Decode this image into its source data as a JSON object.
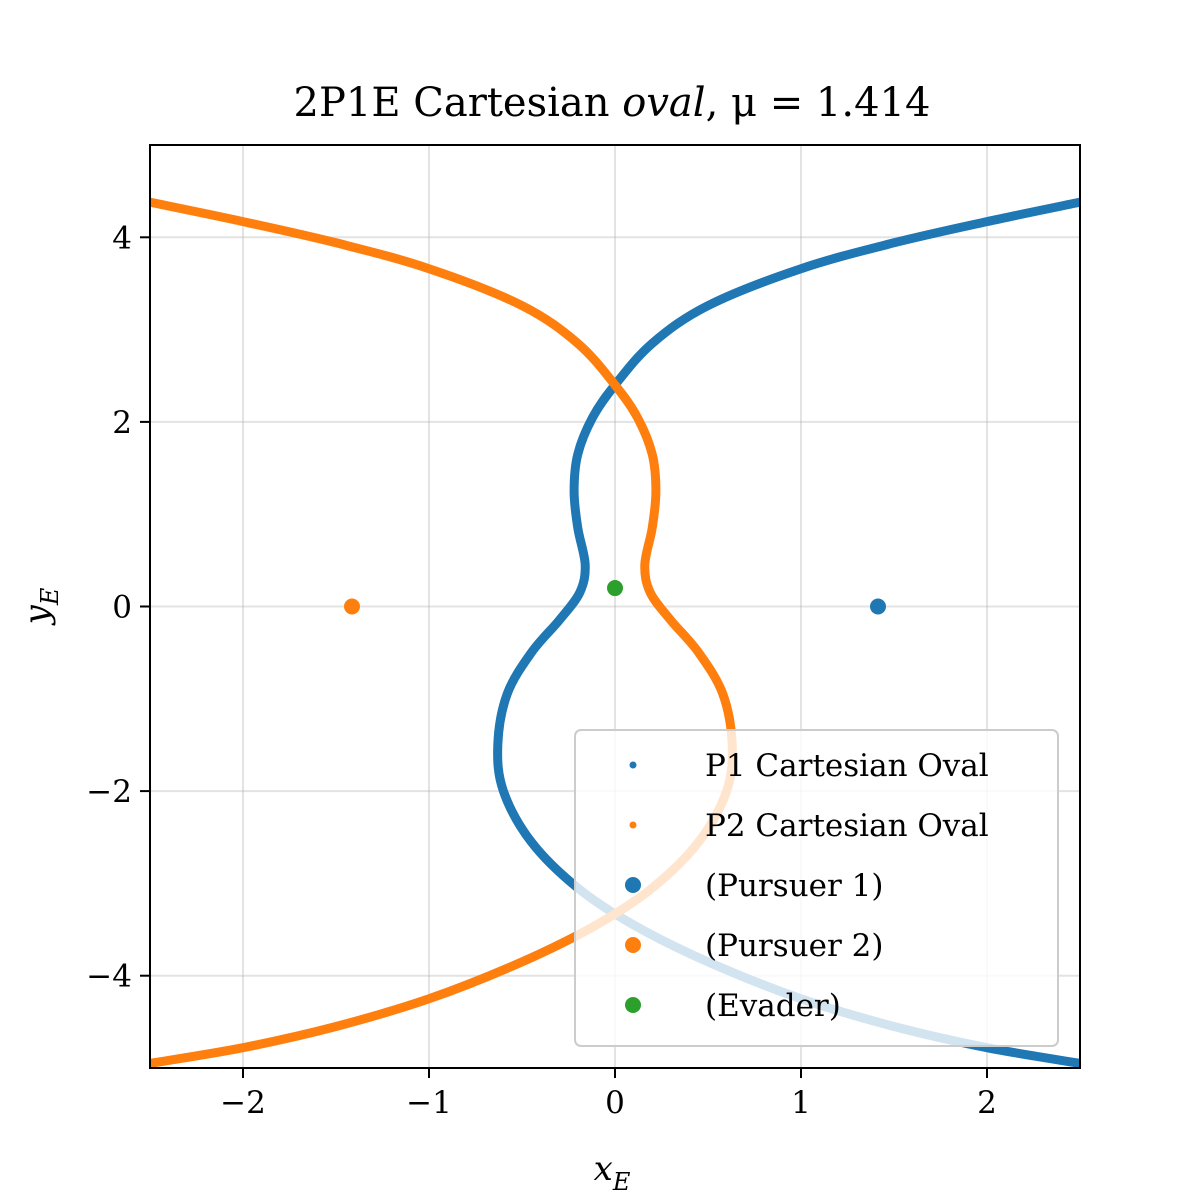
{
  "chart_data": {
    "type": "scatter",
    "title": "2P1E Cartesian oval, μ = 1.414",
    "title_parts": {
      "plain": "2P1E Cartesian ",
      "italic": "oval",
      "rest": ", μ = 1.414"
    },
    "mu": 1.414,
    "xlabel": "x_E",
    "ylabel": "y_E",
    "xlabel_parts": {
      "base": "x",
      "sub": "E"
    },
    "ylabel_parts": {
      "base": "y",
      "sub": "E"
    },
    "xlim": [
      -2.5,
      2.5
    ],
    "ylim": [
      -5,
      5
    ],
    "x_ticks": [
      -2,
      -1,
      0,
      1,
      2
    ],
    "y_ticks": [
      -4,
      -2,
      0,
      2,
      4
    ],
    "x_tick_labels": [
      "−2",
      "−1",
      "0",
      "1",
      "2"
    ],
    "y_tick_labels": [
      "−4",
      "−2",
      "0",
      "2",
      "4"
    ],
    "grid": true,
    "legend_position": "lower-right",
    "series": [
      {
        "name": "P1 Cartesian Oval",
        "kind": "curve",
        "color": "#1f77b4",
        "points": [
          [
            2.5,
            4.38
          ],
          [
            2.0,
            4.17
          ],
          [
            1.5,
            3.94
          ],
          [
            1.0,
            3.66
          ],
          [
            0.5,
            3.26
          ],
          [
            0.2,
            2.85
          ],
          [
            0.0,
            2.4
          ],
          [
            -0.12,
            2.05
          ],
          [
            -0.2,
            1.65
          ],
          [
            -0.22,
            1.25
          ],
          [
            -0.2,
            0.85
          ],
          [
            -0.16,
            0.45
          ],
          [
            -0.19,
            0.15
          ],
          [
            -0.3,
            -0.15
          ],
          [
            -0.45,
            -0.5
          ],
          [
            -0.58,
            -0.95
          ],
          [
            -0.63,
            -1.5
          ],
          [
            -0.6,
            -2.0
          ],
          [
            -0.45,
            -2.55
          ],
          [
            -0.2,
            -3.05
          ],
          [
            0.1,
            -3.45
          ],
          [
            0.5,
            -3.85
          ],
          [
            1.0,
            -4.25
          ],
          [
            1.5,
            -4.55
          ],
          [
            2.0,
            -4.78
          ],
          [
            2.5,
            -4.95
          ]
        ]
      },
      {
        "name": "P2 Cartesian Oval",
        "kind": "curve",
        "color": "#ff7f0e",
        "points": [
          [
            -2.5,
            4.38
          ],
          [
            -2.0,
            4.17
          ],
          [
            -1.5,
            3.94
          ],
          [
            -1.0,
            3.66
          ],
          [
            -0.5,
            3.26
          ],
          [
            -0.2,
            2.85
          ],
          [
            0.0,
            2.4
          ],
          [
            0.12,
            2.05
          ],
          [
            0.2,
            1.65
          ],
          [
            0.22,
            1.25
          ],
          [
            0.2,
            0.85
          ],
          [
            0.16,
            0.45
          ],
          [
            0.19,
            0.15
          ],
          [
            0.3,
            -0.15
          ],
          [
            0.45,
            -0.5
          ],
          [
            0.58,
            -0.95
          ],
          [
            0.63,
            -1.5
          ],
          [
            0.6,
            -2.0
          ],
          [
            0.45,
            -2.55
          ],
          [
            0.2,
            -3.05
          ],
          [
            -0.1,
            -3.45
          ],
          [
            -0.5,
            -3.85
          ],
          [
            -1.0,
            -4.25
          ],
          [
            -1.5,
            -4.55
          ],
          [
            -2.0,
            -4.78
          ],
          [
            -2.5,
            -4.95
          ]
        ]
      },
      {
        "name": "(Pursuer 1)",
        "kind": "point",
        "color": "#1f77b4",
        "points": [
          [
            1.414,
            0.0
          ]
        ]
      },
      {
        "name": "(Pursuer 2)",
        "kind": "point",
        "color": "#ff7f0e",
        "points": [
          [
            -1.414,
            0.0
          ]
        ]
      },
      {
        "name": "(Evader)",
        "kind": "point",
        "color": "#2ca02c",
        "points": [
          [
            0.0,
            0.2
          ]
        ]
      }
    ]
  }
}
